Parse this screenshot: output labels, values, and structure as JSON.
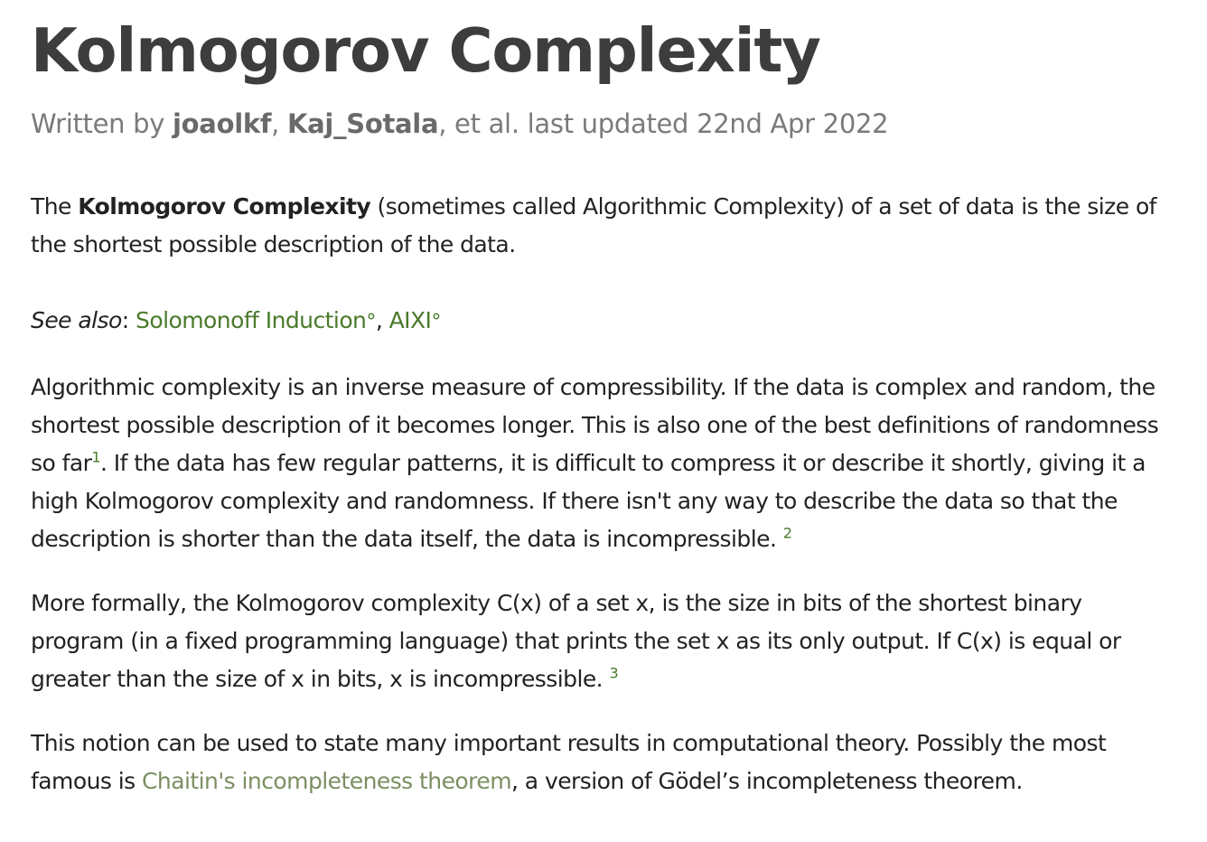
{
  "article": {
    "title": "Kolmogorov Complexity",
    "byline": {
      "prefix": "Written by ",
      "author1": "joaolkf",
      "sep1": ", ",
      "author2": "Kaj_Sotala",
      "suffix": ", et al. last updated 22nd Apr 2022"
    }
  },
  "paragraphs": {
    "p1": {
      "t1": "The ",
      "bold": "Kolmogorov Complexity",
      "t2": " (sometimes called Algorithmic Complexity) of a set of data is the size of the shortest possible description of the data."
    },
    "see_also": {
      "label": "See also",
      "colon": ": ",
      "link1": "Solomonoff Induction",
      "deg": "°",
      "comma": ", ",
      "link2": "AIXI"
    },
    "p2": {
      "t1": "Algorithmic complexity is an inverse measure of compressibility. If the data is complex and random, the shortest possible description of it becomes longer. This is also one of the best definitions of randomness so far",
      "ref1": "1",
      "t2": ". If the data has few regular patterns, it is difficult to compress it or describe it shortly, giving it a high Kolmogorov complexity and randomness. If there isn't any way to describe the data so that the description is shorter than the data itself, the data is incompressible. ",
      "ref2": "2"
    },
    "p3": {
      "t1": "More formally, the Kolmogorov complexity C(x) of a set x, is the size in bits of the shortest binary program (in a fixed programming language) that prints the set x as its only output. If C(x) is equal or greater than the size of x in bits, x is incompressible. ",
      "ref3": "3"
    },
    "p4": {
      "t1": "This notion can be used to state many important results in computational theory. Possibly the most famous is ",
      "link": "Chaitin's incompleteness theorem",
      "t2": ", a version of Gödel’s incompleteness theorem."
    }
  },
  "colors": {
    "link": "#4a7a2a",
    "link_muted": "#7b8f62",
    "title": "#3d3d3d",
    "byline": "#7a7a7a"
  }
}
